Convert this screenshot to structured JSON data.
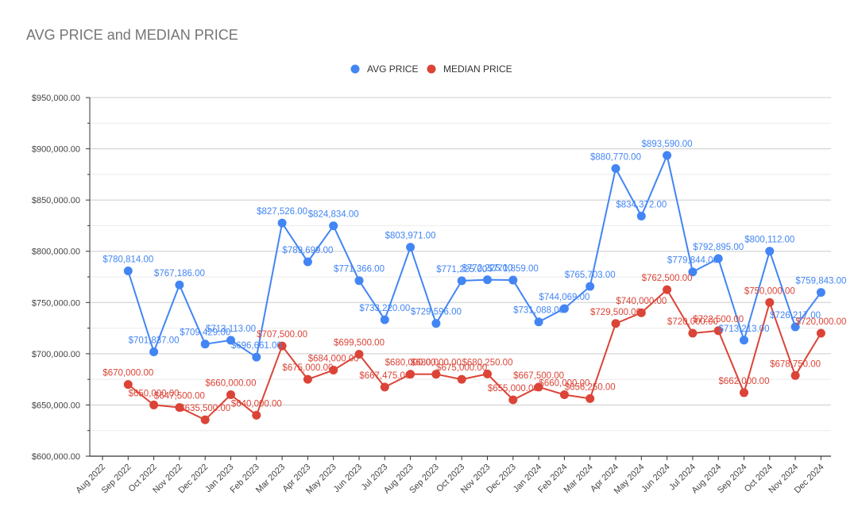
{
  "chart_data": {
    "type": "line",
    "title": "AVG PRICE and MEDIAN PRICE",
    "xlabel": "",
    "ylabel": "",
    "ylim": [
      600000,
      950000
    ],
    "y_ticks": [
      "$600,000.00",
      "$650,000.00",
      "$700,000.00",
      "$750,000.00",
      "$800,000.00",
      "$850,000.00",
      "$900,000.00",
      "$950,000.00"
    ],
    "grid": true,
    "legend_position": "top",
    "categories": [
      "Aug 2022",
      "Sep 2022",
      "Oct 2022",
      "Nov 2022",
      "Dec 2022",
      "Jan 2023",
      "Feb 2023",
      "Mar 2023",
      "Apr 2023",
      "May 2023",
      "Jun 2023",
      "Jul 2023",
      "Aug 2023",
      "Sep 2023",
      "Oct 2023",
      "Nov 2023",
      "Dec 2023",
      "Jan 2024",
      "Feb 2024",
      "Mar 2024",
      "Apr 2024",
      "May 2024",
      "Jun 2024",
      "Jul 2024",
      "Aug 2024",
      "Sep 2024",
      "Oct 2024",
      "Nov 2024",
      "Dec 2024"
    ],
    "series": [
      {
        "name": "AVG PRICE",
        "color": "#4285f4",
        "values": [
          null,
          780814,
          701837,
          767186,
          709429,
          713113,
          696661,
          827526,
          789699,
          824834,
          771366,
          733220,
          803971,
          729596,
          771225,
          772225,
          771859,
          731088,
          744069,
          765703,
          880770,
          834372,
          893590,
          779844,
          792895,
          713213,
          800112,
          726217,
          759843
        ],
        "labels": [
          null,
          "$780,814.00",
          "$701,837.00",
          "$767,186.00",
          "$709,429.00",
          "$713,113.00",
          "$696,661.00",
          "$827,526.00",
          "$789,699.00",
          "$824,834.00",
          "$771,366.00",
          "$733,220.00",
          "$803,971.00",
          "$729,596.00",
          "$771,225.00",
          "$772,225.00",
          "$771,859.00",
          "$731,088.00",
          "$744,069.00",
          "$765,703.00",
          "$880,770.00",
          "$834,372.00",
          "$893,590.00",
          "$779,844.00",
          "$792,895.00",
          "$713,213.00",
          "$800,112.00",
          "$726,217.00",
          "$759,843.00"
        ]
      },
      {
        "name": "MEDIAN PRICE",
        "color": "#db4437",
        "values": [
          null,
          670000,
          650000,
          647500,
          635500,
          660000,
          640000,
          707500,
          675000,
          684000,
          699500,
          667475,
          680000,
          680000,
          675000,
          680250,
          655000,
          667500,
          660000,
          656250,
          729500,
          740000,
          762500,
          720000,
          722500,
          662000,
          750000,
          678750,
          720000
        ],
        "labels": [
          null,
          "$670,000.00",
          "$650,000.00",
          "$647,500.00",
          "$635,500.00",
          "$660,000.00",
          "$640,000.00",
          "$707,500.00",
          "$675,000.00",
          "$684,000.00",
          "$699,500.00",
          "$667,475.00",
          "$680,000.00",
          "$680,000.00",
          "$675,000.00",
          "$680,250.00",
          "$655,000.00",
          "$667,500.00",
          "$660,000.00",
          "$656,250.00",
          "$729,500.00",
          "$740,000.00",
          "$762,500.00",
          "$720,000.00",
          "$722,500.00",
          "$662,000.00",
          "$750,000.00",
          "$678,750.00",
          "$720,000.00"
        ]
      }
    ]
  }
}
